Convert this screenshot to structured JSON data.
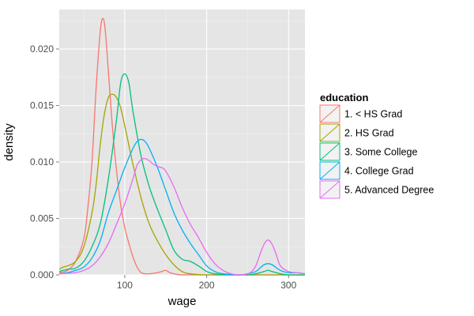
{
  "chart_data": {
    "type": "line",
    "xlabel": "wage",
    "ylabel": "density",
    "xlim": [
      20,
      320
    ],
    "ylim": [
      0,
      0.0235
    ],
    "x_ticks": [
      100,
      200,
      300
    ],
    "x_tick_labels": [
      "100",
      "200",
      "300"
    ],
    "y_ticks": [
      0,
      0.005,
      0.01,
      0.015,
      0.02
    ],
    "y_tick_labels": [
      "0.000",
      "0.005",
      "0.010",
      "0.015",
      "0.020"
    ],
    "grid": true,
    "background": "#e5e5e5",
    "legend": {
      "title": "education",
      "placement": "right"
    },
    "series": [
      {
        "name": "1. < HS Grad",
        "color": "#f8766d",
        "points": [
          [
            20,
            0.0002
          ],
          [
            30,
            0.0004
          ],
          [
            40,
            0.0012
          ],
          [
            50,
            0.0032
          ],
          [
            55,
            0.006
          ],
          [
            60,
            0.01
          ],
          [
            65,
            0.0165
          ],
          [
            70,
            0.0215
          ],
          [
            73,
            0.0227
          ],
          [
            76,
            0.0218
          ],
          [
            80,
            0.018
          ],
          [
            85,
            0.013
          ],
          [
            90,
            0.0092
          ],
          [
            95,
            0.0062
          ],
          [
            100,
            0.0042
          ],
          [
            105,
            0.0028
          ],
          [
            110,
            0.0016
          ],
          [
            115,
            0.0007
          ],
          [
            120,
            0.0002
          ],
          [
            125,
            0.0001
          ],
          [
            130,
            0.0001
          ],
          [
            140,
            0.0002
          ],
          [
            145,
            0.0003
          ],
          [
            150,
            0.0004
          ],
          [
            155,
            0.0002
          ],
          [
            160,
            0.0001
          ],
          [
            170,
            0
          ],
          [
            200,
            0
          ],
          [
            250,
            0
          ],
          [
            300,
            0
          ],
          [
            320,
            0
          ]
        ]
      },
      {
        "name": "2. HS Grad",
        "color": "#a3a500",
        "points": [
          [
            20,
            0.0005
          ],
          [
            25,
            0.0007
          ],
          [
            30,
            0.0008
          ],
          [
            40,
            0.0012
          ],
          [
            50,
            0.0025
          ],
          [
            60,
            0.0055
          ],
          [
            65,
            0.008
          ],
          [
            70,
            0.0115
          ],
          [
            75,
            0.0142
          ],
          [
            80,
            0.0157
          ],
          [
            85,
            0.016
          ],
          [
            90,
            0.0157
          ],
          [
            95,
            0.0148
          ],
          [
            100,
            0.0132
          ],
          [
            110,
            0.0098
          ],
          [
            120,
            0.0068
          ],
          [
            130,
            0.0045
          ],
          [
            140,
            0.003
          ],
          [
            150,
            0.0018
          ],
          [
            160,
            0.0009
          ],
          [
            170,
            0.0003
          ],
          [
            180,
            0.0001
          ],
          [
            200,
            0
          ],
          [
            250,
            0
          ],
          [
            300,
            0
          ],
          [
            320,
            0
          ]
        ]
      },
      {
        "name": "3. Some College",
        "color": "#00bf7d",
        "points": [
          [
            20,
            0.0003
          ],
          [
            30,
            0.0005
          ],
          [
            40,
            0.0006
          ],
          [
            50,
            0.0012
          ],
          [
            60,
            0.0025
          ],
          [
            70,
            0.0045
          ],
          [
            80,
            0.0085
          ],
          [
            90,
            0.0138
          ],
          [
            95,
            0.017
          ],
          [
            100,
            0.0178
          ],
          [
            105,
            0.017
          ],
          [
            110,
            0.0145
          ],
          [
            120,
            0.0105
          ],
          [
            130,
            0.0078
          ],
          [
            140,
            0.0058
          ],
          [
            150,
            0.004
          ],
          [
            160,
            0.0022
          ],
          [
            170,
            0.0014
          ],
          [
            180,
            0.0012
          ],
          [
            190,
            0.0008
          ],
          [
            200,
            0.0003
          ],
          [
            210,
            0.0001
          ],
          [
            230,
            0
          ],
          [
            250,
            0
          ],
          [
            260,
            0.0001
          ],
          [
            270,
            0.0003
          ],
          [
            275,
            0.0004
          ],
          [
            280,
            0.0003
          ],
          [
            290,
            0.0001
          ],
          [
            300,
            0
          ],
          [
            320,
            0
          ]
        ]
      },
      {
        "name": "4. College Grad",
        "color": "#00b0f6",
        "points": [
          [
            20,
            0.0001
          ],
          [
            30,
            0.0002
          ],
          [
            40,
            0.0004
          ],
          [
            50,
            0.0007
          ],
          [
            60,
            0.0015
          ],
          [
            70,
            0.003
          ],
          [
            80,
            0.0055
          ],
          [
            90,
            0.0075
          ],
          [
            100,
            0.0095
          ],
          [
            110,
            0.0112
          ],
          [
            115,
            0.0118
          ],
          [
            120,
            0.012
          ],
          [
            125,
            0.0118
          ],
          [
            130,
            0.0112
          ],
          [
            140,
            0.0095
          ],
          [
            150,
            0.0075
          ],
          [
            160,
            0.0055
          ],
          [
            170,
            0.004
          ],
          [
            180,
            0.0028
          ],
          [
            190,
            0.0018
          ],
          [
            200,
            0.0008
          ],
          [
            210,
            0.0003
          ],
          [
            220,
            0.0001
          ],
          [
            240,
            0
          ],
          [
            250,
            0.0001
          ],
          [
            260,
            0.0003
          ],
          [
            265,
            0.0006
          ],
          [
            270,
            0.0009
          ],
          [
            275,
            0.001
          ],
          [
            280,
            0.0009
          ],
          [
            290,
            0.0004
          ],
          [
            300,
            0.0002
          ],
          [
            310,
            0.0002
          ],
          [
            320,
            0.0001
          ]
        ]
      },
      {
        "name": "5. Advanced Degree",
        "color": "#e76bf3",
        "points": [
          [
            20,
            0.0001
          ],
          [
            40,
            0.0002
          ],
          [
            50,
            0.0004
          ],
          [
            60,
            0.0008
          ],
          [
            70,
            0.0016
          ],
          [
            80,
            0.0028
          ],
          [
            90,
            0.0045
          ],
          [
            100,
            0.0063
          ],
          [
            110,
            0.0085
          ],
          [
            115,
            0.0097
          ],
          [
            120,
            0.0102
          ],
          [
            125,
            0.0103
          ],
          [
            130,
            0.0101
          ],
          [
            135,
            0.0098
          ],
          [
            140,
            0.0096
          ],
          [
            145,
            0.0095
          ],
          [
            150,
            0.0092
          ],
          [
            160,
            0.0078
          ],
          [
            170,
            0.006
          ],
          [
            180,
            0.0045
          ],
          [
            190,
            0.0033
          ],
          [
            200,
            0.002
          ],
          [
            210,
            0.001
          ],
          [
            220,
            0.0004
          ],
          [
            230,
            0.0001
          ],
          [
            240,
            0
          ],
          [
            250,
            0.0001
          ],
          [
            255,
            0.0003
          ],
          [
            260,
            0.0008
          ],
          [
            265,
            0.0018
          ],
          [
            270,
            0.0027
          ],
          [
            275,
            0.0031
          ],
          [
            280,
            0.0027
          ],
          [
            285,
            0.0018
          ],
          [
            290,
            0.0008
          ],
          [
            300,
            0.0003
          ],
          [
            310,
            0.0002
          ],
          [
            320,
            0.0001
          ]
        ]
      }
    ]
  }
}
